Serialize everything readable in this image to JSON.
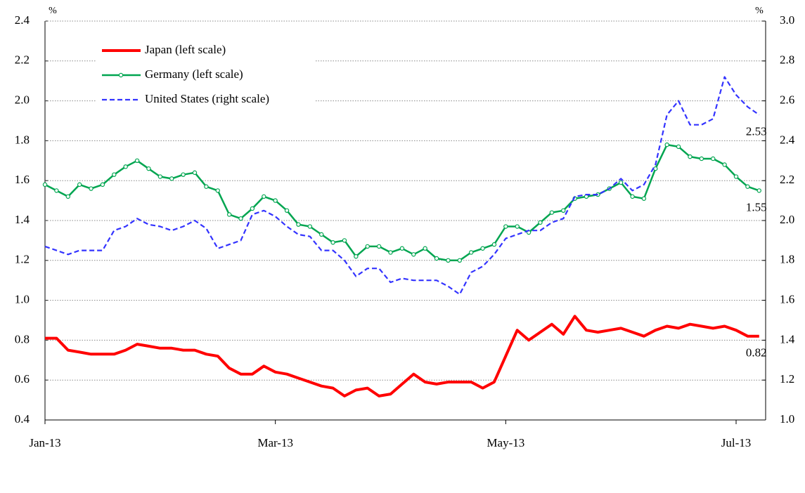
{
  "chart_data": {
    "type": "line",
    "categories": [
      "Jan-13",
      null,
      null,
      null,
      null,
      null,
      null,
      null,
      null,
      null,
      null,
      null,
      null,
      null,
      null,
      null,
      null,
      null,
      null,
      null,
      "Mar-13",
      null,
      null,
      null,
      null,
      null,
      null,
      null,
      null,
      null,
      null,
      null,
      null,
      null,
      null,
      null,
      null,
      null,
      null,
      null,
      "May-13",
      null,
      null,
      null,
      null,
      null,
      null,
      null,
      null,
      null,
      null,
      null,
      null,
      null,
      null,
      null,
      null,
      null,
      null,
      null,
      "Jul-13",
      null,
      null
    ],
    "y_unit": "%",
    "y2_unit": "%",
    "ylim": [
      0.4,
      2.4
    ],
    "yticks": [
      0.4,
      0.6,
      0.8,
      {
        "value": 1,
        "label": "1.0"
      },
      1.2,
      1.4,
      1.6,
      1.8,
      {
        "value": 2,
        "label": "2.0"
      },
      2.2,
      2.4
    ],
    "y2lim": [
      1,
      3
    ],
    "y2ticks": [
      {
        "value": 1,
        "label": "1.0"
      },
      1.2,
      1.4,
      1.6,
      1.8,
      {
        "value": 2,
        "label": "2.0"
      },
      2.2,
      2.4,
      2.6,
      2.8,
      {
        "value": 3,
        "label": "3.0"
      }
    ],
    "grid": true,
    "legend": "upper left",
    "end_labels": true,
    "series": [
      {
        "name": "Japan (left scale)",
        "color": "#ff0000",
        "width": 4,
        "values": [
          0.81,
          0.81,
          0.75,
          0.74,
          0.73,
          0.73,
          0.73,
          0.75,
          0.78,
          0.77,
          0.76,
          0.76,
          0.75,
          0.75,
          0.73,
          0.72,
          0.66,
          0.63,
          0.63,
          0.67,
          0.64,
          0.63,
          0.61,
          0.59,
          0.57,
          0.56,
          0.52,
          0.55,
          0.56,
          0.52,
          0.53,
          0.58,
          0.63,
          0.59,
          0.58,
          0.59,
          0.59,
          0.59,
          0.56,
          0.59,
          0.72,
          0.85,
          0.8,
          0.84,
          0.88,
          0.83,
          0.92,
          0.85,
          0.84,
          0.85,
          0.86,
          0.84,
          0.82,
          0.85,
          0.87,
          0.86,
          0.88,
          0.87,
          0.86,
          0.87,
          0.85,
          0.82,
          0.82
        ]
      },
      {
        "name": "Germany (left scale)",
        "color": "#00a550",
        "width": 2.5,
        "markers": true,
        "values": [
          1.58,
          1.55,
          1.52,
          1.58,
          1.56,
          1.58,
          1.63,
          1.67,
          1.7,
          1.66,
          1.62,
          1.61,
          1.63,
          1.64,
          1.57,
          1.55,
          1.43,
          1.41,
          1.46,
          1.52,
          1.5,
          1.45,
          1.38,
          1.37,
          1.33,
          1.29,
          1.3,
          1.22,
          1.27,
          1.27,
          1.24,
          1.26,
          1.23,
          1.26,
          1.21,
          1.2,
          1.2,
          1.24,
          1.26,
          1.28,
          1.37,
          1.37,
          1.34,
          1.39,
          1.44,
          1.45,
          1.51,
          1.52,
          1.53,
          1.56,
          1.59,
          1.52,
          1.51,
          1.66,
          1.78,
          1.77,
          1.72,
          1.71,
          1.71,
          1.68,
          1.62,
          1.57,
          1.55
        ]
      },
      {
        "name": "United States (right scale)",
        "color": "#3333ff",
        "width": 2.2,
        "dash": true,
        "axis": "y2",
        "values": [
          1.87,
          1.85,
          1.83,
          1.85,
          1.85,
          1.85,
          1.95,
          1.97,
          2.01,
          1.98,
          1.97,
          1.95,
          1.97,
          2.0,
          1.96,
          1.86,
          1.88,
          1.9,
          2.03,
          2.05,
          2.02,
          1.97,
          1.93,
          1.92,
          1.85,
          1.85,
          1.8,
          1.72,
          1.76,
          1.76,
          1.69,
          1.71,
          1.7,
          1.7,
          1.7,
          1.67,
          1.63,
          1.74,
          1.77,
          1.83,
          1.91,
          1.93,
          1.95,
          1.95,
          1.99,
          2.01,
          2.12,
          2.13,
          2.13,
          2.16,
          2.21,
          2.15,
          2.18,
          2.28,
          2.53,
          2.6,
          2.48,
          2.48,
          2.51,
          2.72,
          2.63,
          2.57,
          2.53
        ]
      }
    ]
  }
}
